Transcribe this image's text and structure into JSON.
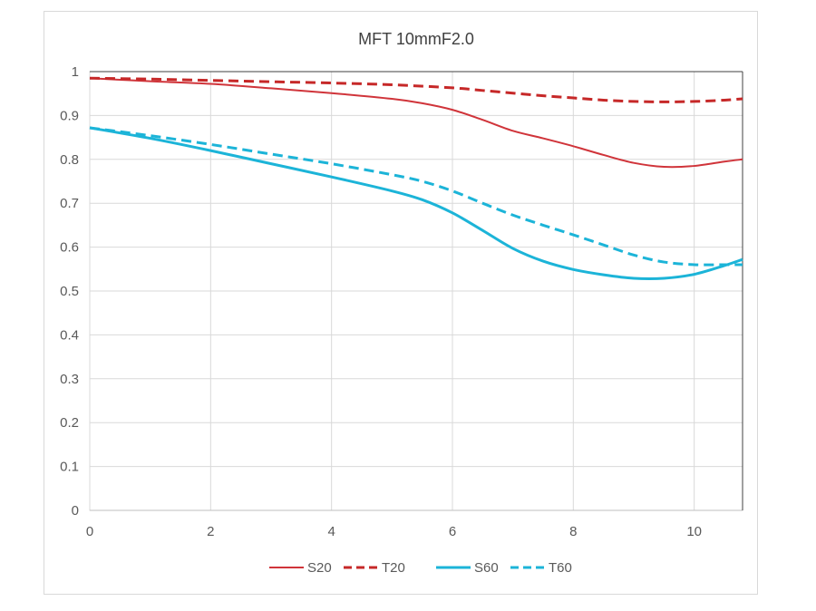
{
  "chart_data": {
    "type": "line",
    "title": "MFT  10mmF2.0",
    "xlabel": "",
    "ylabel": "",
    "xlim": [
      0,
      10.8
    ],
    "ylim": [
      0,
      1
    ],
    "x_ticks": [
      "0",
      "2",
      "4",
      "6",
      "8",
      "10"
    ],
    "y_ticks": [
      "0",
      "0.1",
      "0.2",
      "0.3",
      "0.4",
      "0.5",
      "0.6",
      "0.7",
      "0.8",
      "0.9",
      "1"
    ],
    "grid": true,
    "legend_position": "bottom",
    "series": [
      {
        "name": "S20",
        "color": "#d0343a",
        "dash": "solid",
        "x": [
          0,
          1,
          2,
          3,
          4,
          5,
          5.5,
          6,
          6.5,
          7,
          7.5,
          8,
          8.5,
          9,
          9.5,
          10,
          10.5,
          10.8
        ],
        "y": [
          0.985,
          0.978,
          0.972,
          0.962,
          0.951,
          0.938,
          0.928,
          0.913,
          0.89,
          0.865,
          0.848,
          0.83,
          0.81,
          0.792,
          0.783,
          0.785,
          0.795,
          0.8
        ]
      },
      {
        "name": "T20",
        "color": "#c62828",
        "dash": "dashed",
        "x": [
          0,
          1,
          2,
          3,
          4,
          5,
          6,
          6.5,
          7,
          7.5,
          8,
          8.5,
          9,
          9.5,
          10,
          10.5,
          10.8
        ],
        "y": [
          0.985,
          0.983,
          0.98,
          0.977,
          0.974,
          0.97,
          0.963,
          0.957,
          0.951,
          0.945,
          0.94,
          0.935,
          0.932,
          0.931,
          0.932,
          0.935,
          0.938
        ]
      },
      {
        "name": "S60",
        "color": "#1cb4d8",
        "dash": "solid",
        "x": [
          0,
          1,
          2,
          3,
          4,
          5,
          5.5,
          6,
          6.5,
          7,
          7.5,
          8,
          8.5,
          9,
          9.5,
          10,
          10.5,
          10.8
        ],
        "y": [
          0.872,
          0.848,
          0.82,
          0.79,
          0.76,
          0.728,
          0.708,
          0.678,
          0.638,
          0.597,
          0.568,
          0.549,
          0.537,
          0.529,
          0.529,
          0.538,
          0.558,
          0.572
        ]
      },
      {
        "name": "T60",
        "color": "#1cb4d8",
        "dash": "dashed",
        "x": [
          0,
          1,
          2,
          3,
          4,
          5,
          5.5,
          6,
          6.5,
          7,
          7.5,
          8,
          8.5,
          9,
          9.5,
          10,
          10.5,
          10.8
        ],
        "y": [
          0.872,
          0.854,
          0.834,
          0.812,
          0.79,
          0.765,
          0.75,
          0.728,
          0.7,
          0.673,
          0.65,
          0.628,
          0.605,
          0.582,
          0.566,
          0.56,
          0.56,
          0.56
        ]
      }
    ]
  }
}
